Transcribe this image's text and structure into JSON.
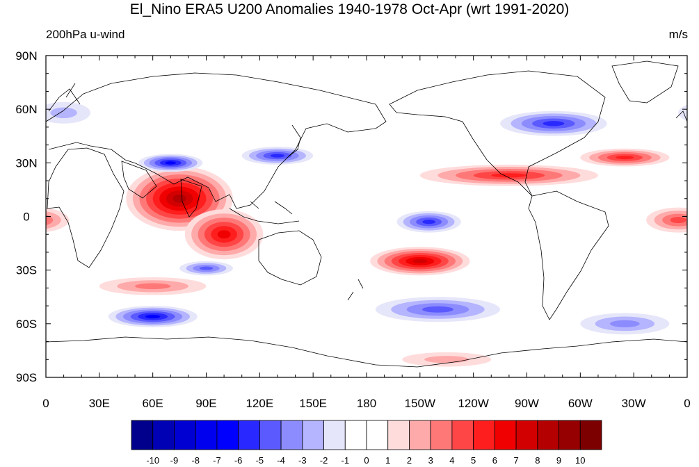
{
  "title": "El_Nino ERA5 U200 Anomalies 1940-1978 Oct-Apr (wrt 1991-2020)",
  "left_subtitle": "200hPa u-wind",
  "right_subtitle": "m/s",
  "lat_ticks": [
    "90N",
    "60N",
    "30N",
    "0",
    "30S",
    "60S",
    "90S"
  ],
  "lon_ticks": [
    "0",
    "30E",
    "60E",
    "90E",
    "120E",
    "150E",
    "180",
    "150W",
    "120W",
    "90W",
    "60W",
    "30W",
    "0"
  ],
  "colorbar": {
    "labels": [
      "-10",
      "-9",
      "-8",
      "-7",
      "-6",
      "-5",
      "-4",
      "-3",
      "-2",
      "-1",
      "0",
      "1",
      "2",
      "3",
      "4",
      "5",
      "6",
      "7",
      "8",
      "9",
      "10"
    ],
    "colors": [
      "#00008c",
      "#0000b4",
      "#0000d2",
      "#0000ee",
      "#0000ff",
      "#2828ff",
      "#5a5aff",
      "#8c8cff",
      "#b4b4ff",
      "#e6e6fa",
      "#ffffff",
      "#ffffff",
      "#ffdcdc",
      "#ffaaaa",
      "#ff7878",
      "#ff4646",
      "#ff1e1e",
      "#f00000",
      "#d20000",
      "#b40000",
      "#960000",
      "#7d0000"
    ]
  },
  "anomaly_fields": [
    {
      "sign": "pos",
      "peak": 8,
      "lon_center": 75,
      "lat_center": 10,
      "lon_halfwidth": 30,
      "lat_halfwidth": 18
    },
    {
      "sign": "pos",
      "peak": 6,
      "lon_center": 100,
      "lat_center": -10,
      "lon_halfwidth": 22,
      "lat_halfwidth": 14
    },
    {
      "sign": "pos",
      "peak": 7,
      "lon_center": -150,
      "lat_center": -25,
      "lon_halfwidth": 28,
      "lat_halfwidth": 8
    },
    {
      "sign": "pos",
      "peak": 5,
      "lon_center": -100,
      "lat_center": 23,
      "lon_halfwidth": 50,
      "lat_halfwidth": 6
    },
    {
      "sign": "pos",
      "peak": 5,
      "lon_center": -35,
      "lat_center": 33,
      "lon_halfwidth": 25,
      "lat_halfwidth": 5
    },
    {
      "sign": "pos",
      "peak": 4,
      "lon_center": -5,
      "lat_center": -2,
      "lon_halfwidth": 18,
      "lat_halfwidth": 7
    },
    {
      "sign": "pos",
      "peak": 3,
      "lon_center": 60,
      "lat_center": -39,
      "lon_halfwidth": 30,
      "lat_halfwidth": 5
    },
    {
      "sign": "pos",
      "peak": 2,
      "lon_center": -135,
      "lat_center": -80,
      "lon_halfwidth": 25,
      "lat_halfwidth": 4
    },
    {
      "sign": "neg",
      "peak": -6,
      "lon_center": 60,
      "lat_center": -56,
      "lon_halfwidth": 25,
      "lat_halfwidth": 6
    },
    {
      "sign": "neg",
      "peak": -6,
      "lon_center": 70,
      "lat_center": 30,
      "lon_halfwidth": 18,
      "lat_halfwidth": 5
    },
    {
      "sign": "neg",
      "peak": -5,
      "lon_center": 130,
      "lat_center": 34,
      "lon_halfwidth": 20,
      "lat_halfwidth": 5
    },
    {
      "sign": "neg",
      "peak": -5,
      "lon_center": -145,
      "lat_center": -3,
      "lon_halfwidth": 18,
      "lat_halfwidth": 6
    },
    {
      "sign": "neg",
      "peak": -5,
      "lon_center": -75,
      "lat_center": 52,
      "lon_halfwidth": 30,
      "lat_halfwidth": 7
    },
    {
      "sign": "neg",
      "peak": -4,
      "lon_center": -140,
      "lat_center": -52,
      "lon_halfwidth": 35,
      "lat_halfwidth": 7
    },
    {
      "sign": "neg",
      "peak": -4,
      "lon_center": 90,
      "lat_center": -29,
      "lon_halfwidth": 15,
      "lat_halfwidth": 4
    },
    {
      "sign": "neg",
      "peak": -3,
      "lon_center": -35,
      "lat_center": -60,
      "lon_halfwidth": 25,
      "lat_halfwidth": 6
    },
    {
      "sign": "neg",
      "peak": -2,
      "lon_center": 10,
      "lat_center": 58,
      "lon_halfwidth": 15,
      "lat_halfwidth": 6
    }
  ]
}
